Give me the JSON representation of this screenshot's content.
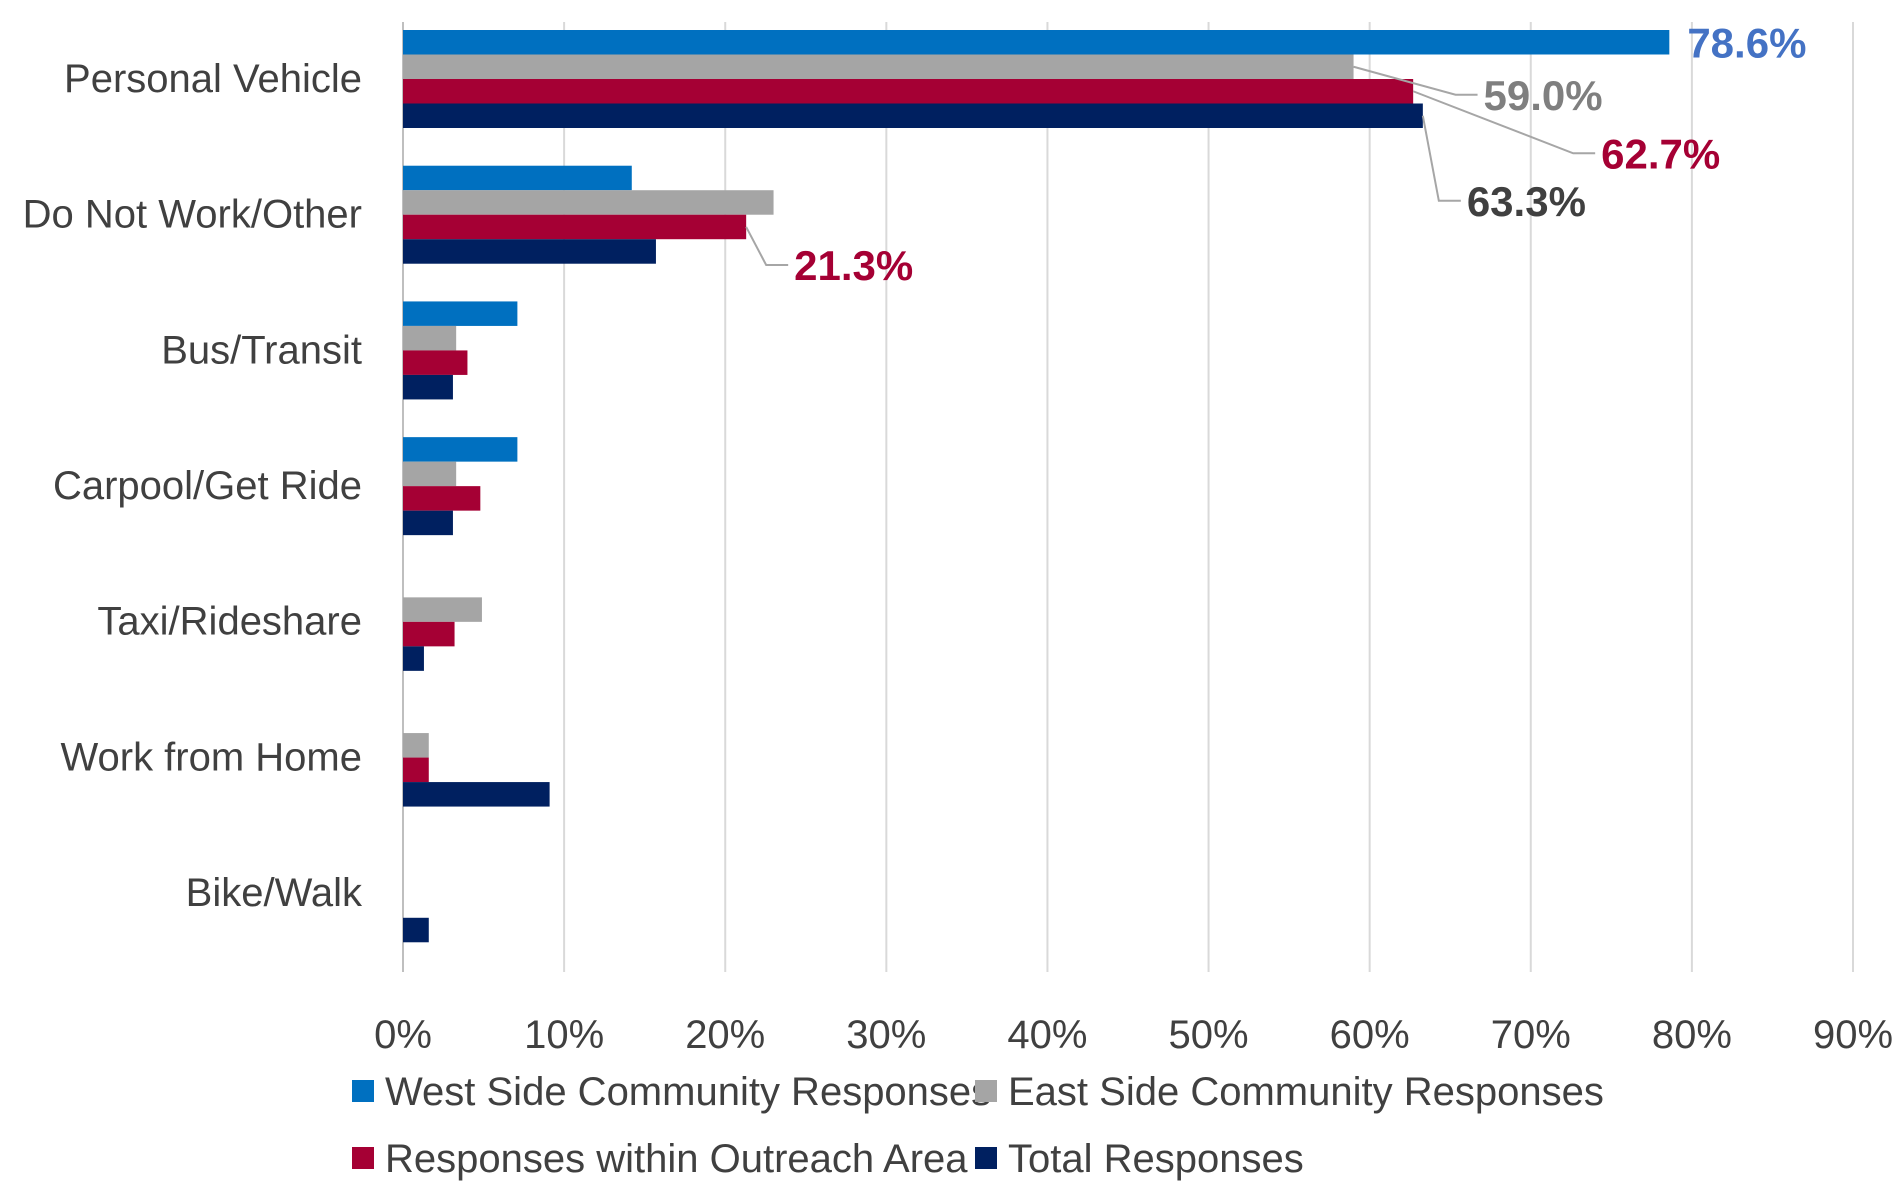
{
  "chart_data": {
    "type": "bar",
    "orientation": "horizontal",
    "title": "",
    "xlabel": "",
    "ylabel": "",
    "categories": [
      "Personal Vehicle",
      "Do Not Work/Other",
      "Bus/Transit",
      "Carpool/Get Ride",
      "Taxi/Rideshare",
      "Work from Home",
      "Bike/Walk"
    ],
    "series": [
      {
        "name": "West Side Community Responses",
        "color": "#0070C0",
        "values": [
          78.6,
          14.2,
          7.1,
          7.1,
          0,
          0,
          0
        ]
      },
      {
        "name": "East Side Community Responses",
        "color": "#A5A5A5",
        "values": [
          59.0,
          23.0,
          3.3,
          3.3,
          4.9,
          1.6,
          0
        ]
      },
      {
        "name": "Responses within Outreach Area",
        "color": "#A50034",
        "values": [
          62.7,
          21.3,
          4.0,
          4.8,
          3.2,
          1.6,
          0
        ]
      },
      {
        "name": "Total Responses",
        "color": "#002060",
        "values": [
          63.3,
          15.7,
          3.1,
          3.1,
          1.3,
          9.1,
          1.6
        ]
      }
    ],
    "xlim": [
      0,
      90
    ],
    "xticks": [
      0,
      10,
      20,
      30,
      40,
      50,
      60,
      70,
      80,
      90
    ],
    "xtick_labels": [
      "0%",
      "10%",
      "20%",
      "30%",
      "40%",
      "50%",
      "60%",
      "70%",
      "80%",
      "90%"
    ],
    "grid": true,
    "legend_position": "bottom",
    "annotations": [
      {
        "category": "Personal Vehicle",
        "series": "West Side Community Responses",
        "text": "78.6%",
        "color": "#4472C4"
      },
      {
        "category": "Personal Vehicle",
        "series": "East Side Community Responses",
        "text": "59.0%",
        "color": "#7F7F7F"
      },
      {
        "category": "Personal Vehicle",
        "series": "Responses within Outreach Area",
        "text": "62.7%",
        "color": "#A50034"
      },
      {
        "category": "Personal Vehicle",
        "series": "Total Responses",
        "text": "63.3%",
        "color": "#404040"
      },
      {
        "category": "Do Not Work/Other",
        "series": "Responses within Outreach Area",
        "text": "21.3%",
        "color": "#A50034"
      }
    ]
  }
}
